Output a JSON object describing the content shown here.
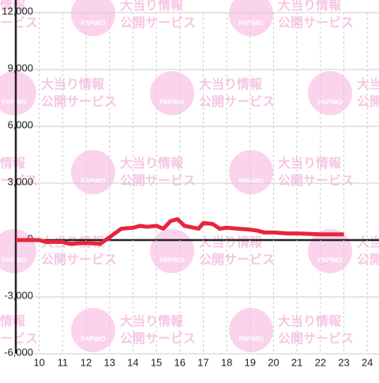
{
  "chart_data": {
    "type": "line",
    "watermark": {
      "logo": "PAPIMO",
      "line1": "大当り情報",
      "line2": "公開サービス"
    },
    "x": [
      9,
      10,
      10.3,
      11,
      11.3,
      12,
      12.6,
      13,
      13.5,
      14,
      14.3,
      14.6,
      15,
      15.3,
      15.6,
      15.9,
      16.2,
      16.8,
      17,
      17.4,
      17.7,
      18,
      18.5,
      19,
      19.3,
      19.6,
      20,
      20.6,
      21,
      22,
      23
    ],
    "series": [
      {
        "color": "#e8253e",
        "values": [
          0,
          0,
          -100,
          -100,
          -200,
          -150,
          -200,
          150,
          600,
          650,
          750,
          700,
          750,
          600,
          1000,
          1100,
          750,
          600,
          900,
          850,
          600,
          650,
          600,
          550,
          500,
          400,
          400,
          350,
          350,
          300,
          300
        ]
      }
    ],
    "xlim": [
      9,
      24.5
    ],
    "ylim": [
      -6000,
      12000
    ],
    "xticks": [
      10,
      11,
      12,
      13,
      14,
      15,
      16,
      17,
      18,
      19,
      20,
      21,
      22,
      23,
      24
    ],
    "yticks": [
      {
        "value": -6000,
        "label": "-6,000"
      },
      {
        "value": -3000,
        "label": "-3,000"
      },
      0,
      {
        "value": 3000,
        "label": "3,000"
      },
      {
        "value": 6000,
        "label": "6,000"
      },
      {
        "value": 9000,
        "label": "9,000"
      },
      {
        "value": 12000,
        "label": "12,000"
      }
    ],
    "grid": true
  }
}
